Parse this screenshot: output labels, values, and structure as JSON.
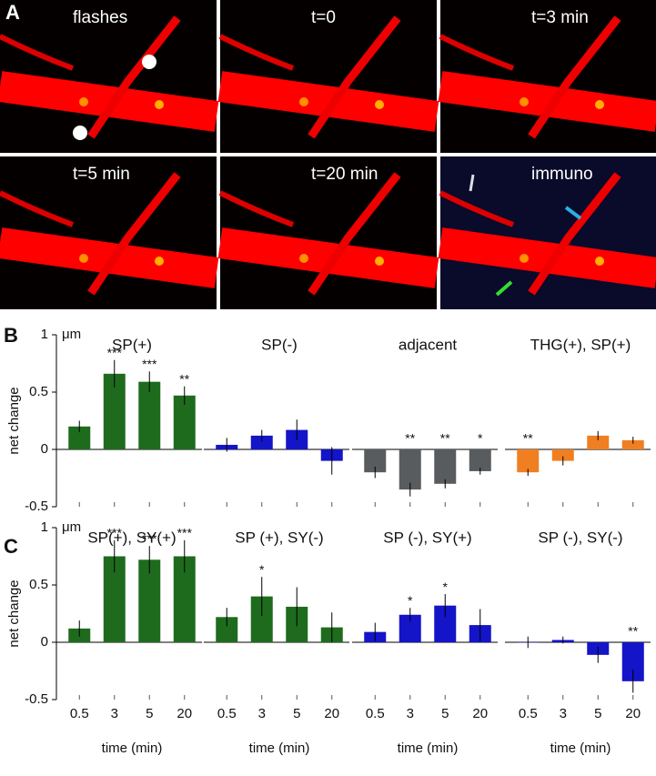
{
  "panel_a": {
    "label": "A",
    "images": [
      "flashes",
      "t=0",
      "t=3 min",
      "t=5 min",
      "t=20 min",
      "immuno"
    ]
  },
  "panel_b_label": "B",
  "panel_c_label": "C",
  "chart_data": [
    {
      "type": "bar",
      "title": "SP(+)",
      "categories": [
        null,
        null,
        null,
        null
      ],
      "values": [
        0.2,
        0.66,
        0.59,
        0.47
      ],
      "errors": [
        0.05,
        0.12,
        0.09,
        0.08
      ],
      "stars": [
        null,
        "***",
        "***",
        "**"
      ],
      "color": "#1e6b1e",
      "ylim": [
        -0.5,
        1
      ],
      "yticks": [
        -0.5,
        0,
        0.5,
        1
      ],
      "ylabel": "net change",
      "y_unit": "μm"
    },
    {
      "type": "bar",
      "title": "SP(-)",
      "categories": [
        null,
        null,
        null,
        null
      ],
      "values": [
        0.04,
        0.12,
        0.17,
        -0.1
      ],
      "errors": [
        0.06,
        0.05,
        0.09,
        0.12
      ],
      "stars": [
        null,
        null,
        null,
        null
      ],
      "color": "#1414c8",
      "ylim": [
        -0.5,
        1
      ]
    },
    {
      "type": "bar",
      "title": "adjacent",
      "categories": [
        null,
        null,
        null,
        null
      ],
      "values": [
        -0.2,
        -0.35,
        -0.3,
        -0.19
      ],
      "errors": [
        0.05,
        0.06,
        0.04,
        0.03
      ],
      "stars": [
        null,
        "**",
        "**",
        "*"
      ],
      "color": "#595c5e",
      "ylim": [
        -0.5,
        1
      ]
    },
    {
      "type": "bar",
      "title": "THG(+), SP(+)",
      "categories": [
        null,
        null,
        null,
        null
      ],
      "values": [
        -0.2,
        -0.1,
        0.12,
        0.08
      ],
      "errors": [
        0.03,
        0.04,
        0.04,
        0.03
      ],
      "stars": [
        "**",
        null,
        null,
        null
      ],
      "color": "#f07f22",
      "ylim": [
        -0.5,
        1
      ]
    },
    {
      "type": "bar",
      "title": "SP(+), SY(+)",
      "categories": [
        "0.5",
        "3",
        "5",
        "20"
      ],
      "values": [
        0.12,
        0.75,
        0.72,
        0.75
      ],
      "errors": [
        0.07,
        0.14,
        0.12,
        0.14
      ],
      "stars": [
        null,
        "***",
        "***",
        "***"
      ],
      "color": "#1e6b1e",
      "ylim": [
        -0.5,
        1
      ],
      "yticks": [
        -0.5,
        0,
        0.5,
        1
      ],
      "ylabel": "net change",
      "y_unit": "μm",
      "xlabel": "time (min)"
    },
    {
      "type": "bar",
      "title": "SP (+), SY(-)",
      "categories": [
        "0.5",
        "3",
        "5",
        "20"
      ],
      "values": [
        0.22,
        0.4,
        0.31,
        0.13
      ],
      "errors": [
        0.08,
        0.17,
        0.17,
        0.13
      ],
      "stars": [
        null,
        "*",
        null,
        null
      ],
      "color": "#1e6b1e",
      "ylim": [
        -0.5,
        1
      ],
      "xlabel": "time (min)"
    },
    {
      "type": "bar",
      "title": "SP (-), SY(+)",
      "categories": [
        "0.5",
        "3",
        "5",
        "20"
      ],
      "values": [
        0.09,
        0.24,
        0.32,
        0.15
      ],
      "errors": [
        0.08,
        0.06,
        0.1,
        0.14
      ],
      "stars": [
        null,
        "*",
        "*",
        null
      ],
      "color": "#1414c8",
      "ylim": [
        -0.5,
        1
      ],
      "xlabel": "time (min)"
    },
    {
      "type": "bar",
      "title": "SP (-), SY(-)",
      "categories": [
        "0.5",
        "3",
        "5",
        "20"
      ],
      "values": [
        0,
        0.02,
        -0.11,
        -0.34
      ],
      "errors": [
        0.05,
        0.03,
        0.07,
        0.1
      ],
      "stars": [
        null,
        null,
        null,
        "**"
      ],
      "color": "#1414c8",
      "ylim": [
        -0.5,
        1
      ],
      "xlabel": "time (min)"
    }
  ]
}
